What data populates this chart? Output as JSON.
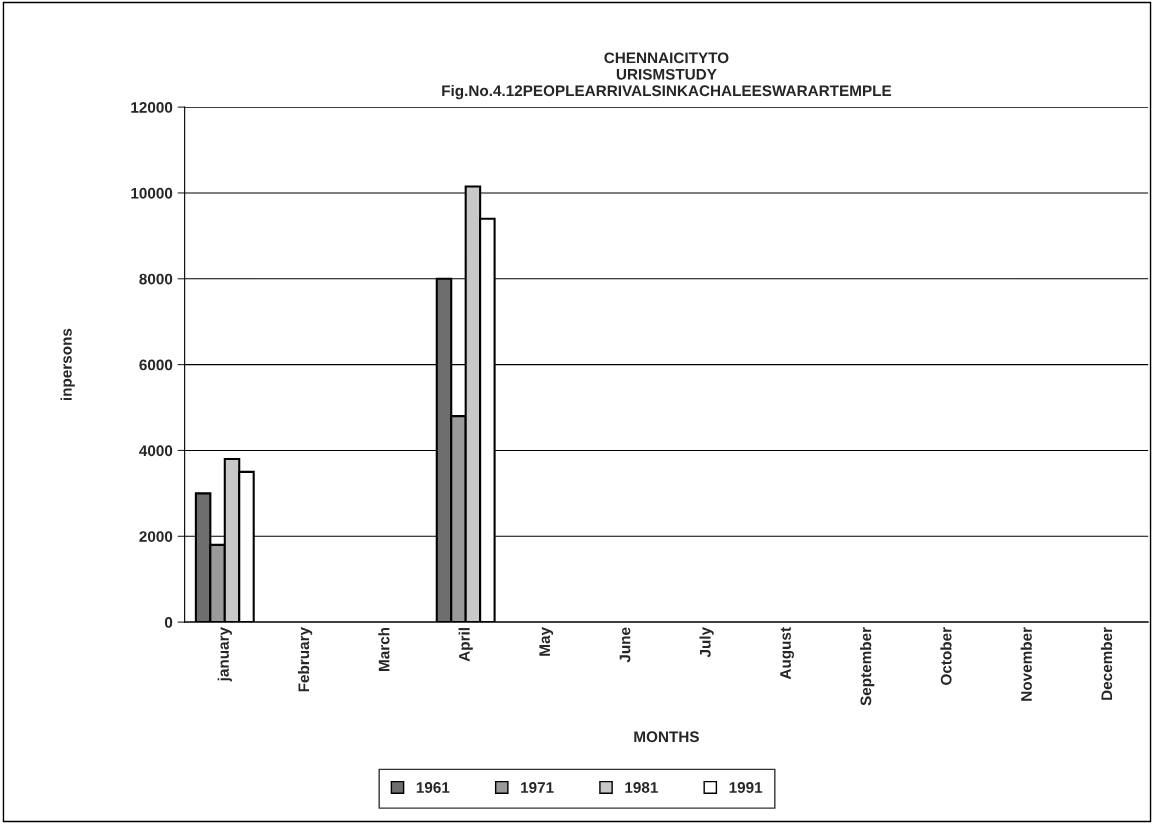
{
  "chart_data": {
    "type": "bar",
    "title": "CHENNAICITYTO\nURISMSTUDY\nFig.No.4.12PEOPLEARRIVALSINKACHALEESWARARTEMPLE",
    "xlabel": "MONTHS",
    "ylabel": "inpersons",
    "categories": [
      "january",
      "February",
      "March",
      "April",
      "May",
      "June",
      "July",
      "August",
      "September",
      "October",
      "November",
      "December"
    ],
    "series": [
      {
        "name": "1961",
        "color": "#6e6e6e",
        "values": [
          3000,
          null,
          null,
          8000,
          null,
          null,
          null,
          null,
          null,
          null,
          null,
          null
        ]
      },
      {
        "name": "1971",
        "color": "#9a9a9a",
        "values": [
          1800,
          null,
          null,
          4800,
          null,
          null,
          null,
          null,
          null,
          null,
          null,
          null
        ]
      },
      {
        "name": "1981",
        "color": "#c8c8c8",
        "values": [
          3800,
          null,
          null,
          10150,
          null,
          null,
          null,
          null,
          null,
          null,
          null,
          null
        ]
      },
      {
        "name": "1991",
        "color": "#ffffff",
        "values": [
          3500,
          null,
          null,
          9400,
          null,
          null,
          null,
          null,
          null,
          null,
          null,
          null
        ]
      }
    ],
    "ylim": [
      0,
      12000
    ],
    "yticks": [
      0,
      2000,
      4000,
      6000,
      8000,
      10000,
      12000
    ],
    "grid": "y",
    "legend": "bottom"
  }
}
